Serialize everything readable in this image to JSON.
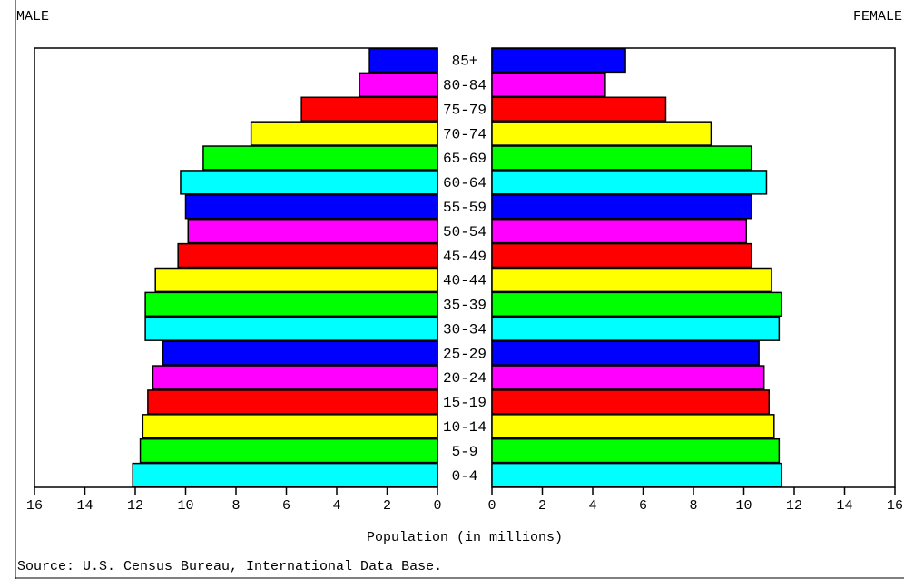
{
  "chart_data": {
    "type": "pyramid",
    "categories": [
      "85+",
      "80-84",
      "75-79",
      "70-74",
      "65-69",
      "60-64",
      "55-59",
      "50-54",
      "45-49",
      "40-44",
      "35-39",
      "30-34",
      "25-29",
      "20-24",
      "15-19",
      "10-14",
      "5-9",
      "0-4"
    ],
    "colors": [
      "#0000ff",
      "#ff00ff",
      "#ff0000",
      "#ffff00",
      "#00ff00",
      "#00ffff",
      "#0000ff",
      "#ff00ff",
      "#ff0000",
      "#ffff00",
      "#00ff00",
      "#00ffff",
      "#0000ff",
      "#ff00ff",
      "#ff0000",
      "#ffff00",
      "#00ff00",
      "#00ffff"
    ],
    "series": [
      {
        "name": "MALE",
        "values": [
          2.7,
          3.1,
          5.4,
          7.4,
          9.3,
          10.2,
          10.0,
          9.9,
          10.3,
          11.2,
          11.6,
          11.6,
          10.9,
          11.3,
          11.5,
          11.7,
          11.8,
          12.1
        ]
      },
      {
        "name": "FEMALE",
        "values": [
          5.3,
          4.5,
          6.9,
          8.7,
          10.3,
          10.9,
          10.3,
          10.1,
          10.3,
          11.1,
          11.5,
          11.4,
          10.6,
          10.8,
          11.0,
          11.2,
          11.4,
          11.5
        ]
      }
    ],
    "xlim": [
      0,
      16
    ],
    "xticks": [
      0,
      2,
      4,
      6,
      8,
      10,
      12,
      14,
      16
    ],
    "x_label": "Population (in millions)",
    "source": "Source: U.S. Census Bureau, International Data Base."
  }
}
